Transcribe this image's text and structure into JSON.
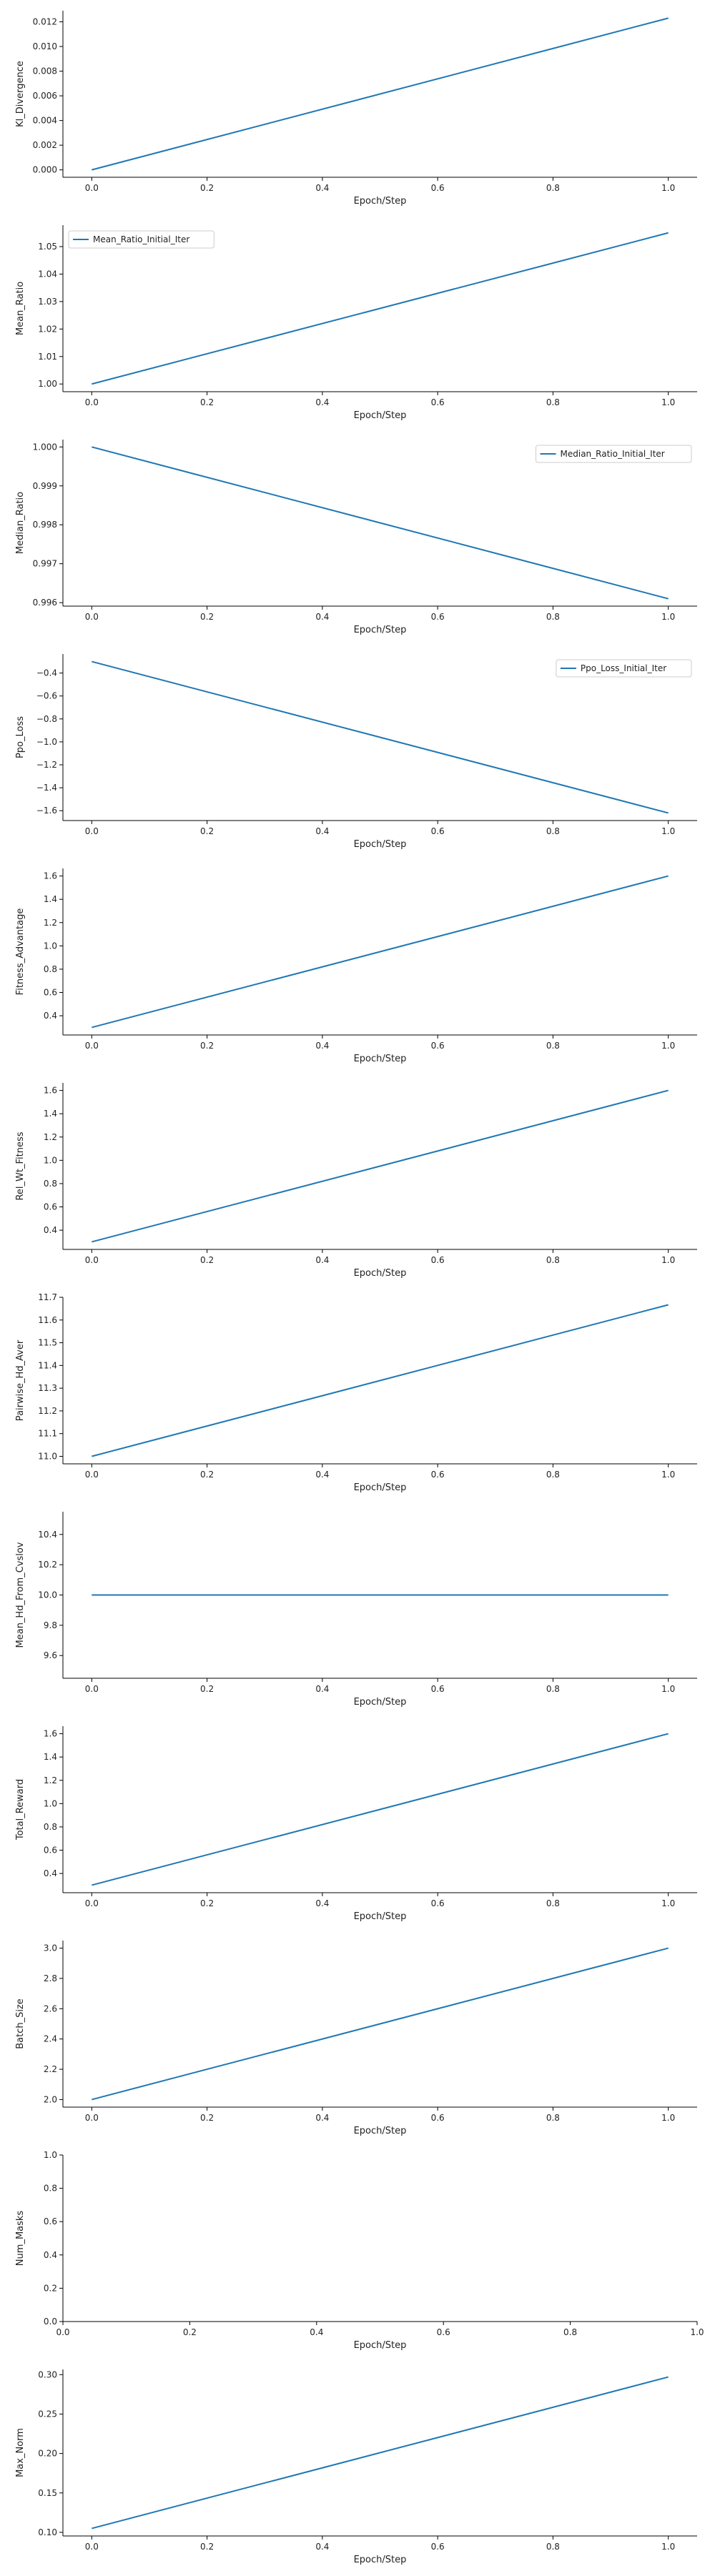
{
  "chart_data": [
    {
      "type": "line",
      "xlabel": "Epoch/Step",
      "ylabel": "Kl_Divergence",
      "x": [
        0.0,
        1.0
      ],
      "series": [
        {
          "values": [
            0.0,
            0.0123
          ]
        }
      ],
      "xlim": [
        -0.05,
        1.05
      ],
      "ylim": [
        -0.0006,
        0.0129
      ],
      "xticks": [
        "0.0",
        "0.2",
        "0.4",
        "0.6",
        "0.8",
        "1.0"
      ],
      "yticks": [
        "0.000",
        "0.002",
        "0.004",
        "0.006",
        "0.008",
        "0.010",
        "0.012"
      ],
      "ytick_values": [
        0.0,
        0.002,
        0.004,
        0.006,
        0.008,
        0.01,
        0.012
      ],
      "legend": null,
      "color": "#1f77b4"
    },
    {
      "type": "line",
      "xlabel": "Epoch/Step",
      "ylabel": "Mean_Ratio",
      "x": [
        0.0,
        1.0
      ],
      "series": [
        {
          "name": "Mean_Ratio_Initial_Iter",
          "values": [
            1.0,
            1.055
          ]
        }
      ],
      "xlim": [
        -0.05,
        1.05
      ],
      "ylim": [
        0.9972,
        1.0578
      ],
      "xticks": [
        "0.0",
        "0.2",
        "0.4",
        "0.6",
        "0.8",
        "1.0"
      ],
      "yticks": [
        "1.00",
        "1.01",
        "1.02",
        "1.03",
        "1.04",
        "1.05"
      ],
      "ytick_values": [
        1.0,
        1.01,
        1.02,
        1.03,
        1.04,
        1.05
      ],
      "legend": "upper-left",
      "color": "#1f77b4"
    },
    {
      "type": "line",
      "xlabel": "Epoch/Step",
      "ylabel": "Median_Ratio",
      "x": [
        0.0,
        1.0
      ],
      "series": [
        {
          "name": "Median_Ratio_Initial_Iter",
          "values": [
            1.0,
            0.9961
          ]
        }
      ],
      "xlim": [
        -0.05,
        1.05
      ],
      "ylim": [
        0.99591,
        1.00019
      ],
      "xticks": [
        "0.0",
        "0.2",
        "0.4",
        "0.6",
        "0.8",
        "1.0"
      ],
      "yticks": [
        "0.996",
        "0.997",
        "0.998",
        "0.999",
        "1.000"
      ],
      "ytick_values": [
        0.996,
        0.997,
        0.998,
        0.999,
        1.0
      ],
      "legend": "upper-right",
      "color": "#1f77b4"
    },
    {
      "type": "line",
      "xlabel": "Epoch/Step",
      "ylabel": "Ppo_Loss",
      "x": [
        0.0,
        1.0
      ],
      "series": [
        {
          "name": "Ppo_Loss_Initial_Iter",
          "values": [
            -0.3,
            -1.62
          ]
        }
      ],
      "xlim": [
        -0.05,
        1.05
      ],
      "ylim": [
        -1.686,
        -0.234
      ],
      "xticks": [
        "0.0",
        "0.2",
        "0.4",
        "0.6",
        "0.8",
        "1.0"
      ],
      "yticks": [
        "−0.4",
        "−0.6",
        "−0.8",
        "−1.0",
        "−1.2",
        "−1.4",
        "−1.6"
      ],
      "ytick_values": [
        -0.4,
        -0.6,
        -0.8,
        -1.0,
        -1.2,
        -1.4,
        -1.6
      ],
      "legend": "upper-right",
      "color": "#1f77b4"
    },
    {
      "type": "line",
      "xlabel": "Epoch/Step",
      "ylabel": "Fitness_Advantage",
      "x": [
        0.0,
        1.0
      ],
      "series": [
        {
          "values": [
            0.3,
            1.6
          ]
        }
      ],
      "xlim": [
        -0.05,
        1.05
      ],
      "ylim": [
        0.235,
        1.665
      ],
      "xticks": [
        "0.0",
        "0.2",
        "0.4",
        "0.6",
        "0.8",
        "1.0"
      ],
      "yticks": [
        "0.4",
        "0.6",
        "0.8",
        "1.0",
        "1.2",
        "1.4",
        "1.6"
      ],
      "ytick_values": [
        0.4,
        0.6,
        0.8,
        1.0,
        1.2,
        1.4,
        1.6
      ],
      "legend": null,
      "color": "#1f77b4"
    },
    {
      "type": "line",
      "xlabel": "Epoch/Step",
      "ylabel": "Rel_Wt_Fitness",
      "x": [
        0.0,
        1.0
      ],
      "series": [
        {
          "values": [
            0.3,
            1.6
          ]
        }
      ],
      "xlim": [
        -0.05,
        1.05
      ],
      "ylim": [
        0.235,
        1.665
      ],
      "xticks": [
        "0.0",
        "0.2",
        "0.4",
        "0.6",
        "0.8",
        "1.0"
      ],
      "yticks": [
        "0.4",
        "0.6",
        "0.8",
        "1.0",
        "1.2",
        "1.4",
        "1.6"
      ],
      "ytick_values": [
        0.4,
        0.6,
        0.8,
        1.0,
        1.2,
        1.4,
        1.6
      ],
      "legend": null,
      "color": "#1f77b4"
    },
    {
      "type": "line",
      "xlabel": "Epoch/Step",
      "ylabel": "Pairwise_Hd_Aver",
      "x": [
        0.0,
        1.0
      ],
      "series": [
        {
          "values": [
            11.0,
            11.667
          ]
        }
      ],
      "xlim": [
        -0.05,
        1.05
      ],
      "ylim": [
        10.967,
        11.7
      ],
      "xticks": [
        "0.0",
        "0.2",
        "0.4",
        "0.6",
        "0.8",
        "1.0"
      ],
      "yticks": [
        "11.0",
        "11.1",
        "11.2",
        "11.3",
        "11.4",
        "11.5",
        "11.6",
        "11.7"
      ],
      "ytick_values": [
        11.0,
        11.1,
        11.2,
        11.3,
        11.4,
        11.5,
        11.6,
        11.7
      ],
      "legend": null,
      "color": "#1f77b4"
    },
    {
      "type": "line",
      "xlabel": "Epoch/Step",
      "ylabel": "Mean_Hd_From_Cvslov",
      "x": [
        0.0,
        1.0
      ],
      "series": [
        {
          "values": [
            10.0,
            10.0
          ]
        }
      ],
      "xlim": [
        -0.05,
        1.05
      ],
      "ylim": [
        9.45,
        10.55
      ],
      "xticks": [
        "0.0",
        "0.2",
        "0.4",
        "0.6",
        "0.8",
        "1.0"
      ],
      "yticks": [
        "9.6",
        "9.8",
        "10.0",
        "10.2",
        "10.4"
      ],
      "ytick_values": [
        9.6,
        9.8,
        10.0,
        10.2,
        10.4
      ],
      "legend": null,
      "color": "#1f77b4"
    },
    {
      "type": "line",
      "xlabel": "Epoch/Step",
      "ylabel": "Total_Reward",
      "x": [
        0.0,
        1.0
      ],
      "series": [
        {
          "values": [
            0.3,
            1.6
          ]
        }
      ],
      "xlim": [
        -0.05,
        1.05
      ],
      "ylim": [
        0.235,
        1.665
      ],
      "xticks": [
        "0.0",
        "0.2",
        "0.4",
        "0.6",
        "0.8",
        "1.0"
      ],
      "yticks": [
        "0.4",
        "0.6",
        "0.8",
        "1.0",
        "1.2",
        "1.4",
        "1.6"
      ],
      "ytick_values": [
        0.4,
        0.6,
        0.8,
        1.0,
        1.2,
        1.4,
        1.6
      ],
      "legend": null,
      "color": "#1f77b4"
    },
    {
      "type": "line",
      "xlabel": "Epoch/Step",
      "ylabel": "Batch_Size",
      "x": [
        0.0,
        1.0
      ],
      "series": [
        {
          "values": [
            2.0,
            3.0
          ]
        }
      ],
      "xlim": [
        -0.05,
        1.05
      ],
      "ylim": [
        1.95,
        3.05
      ],
      "xticks": [
        "0.0",
        "0.2",
        "0.4",
        "0.6",
        "0.8",
        "1.0"
      ],
      "yticks": [
        "2.0",
        "2.2",
        "2.4",
        "2.6",
        "2.8",
        "3.0"
      ],
      "ytick_values": [
        2.0,
        2.2,
        2.4,
        2.6,
        2.8,
        3.0
      ],
      "legend": null,
      "color": "#1f77b4"
    },
    {
      "type": "line",
      "xlabel": "Epoch/Step",
      "ylabel": "Num_Masks",
      "x": [],
      "series": [],
      "xlim": [
        0.0,
        1.0
      ],
      "ylim": [
        0.0,
        1.0
      ],
      "xticks": [
        "0.0",
        "0.2",
        "0.4",
        "0.6",
        "0.8",
        "1.0"
      ],
      "yticks": [
        "0.0",
        "0.2",
        "0.4",
        "0.6",
        "0.8",
        "1.0"
      ],
      "ytick_values": [
        0.0,
        0.2,
        0.4,
        0.6,
        0.8,
        1.0
      ],
      "legend": null,
      "color": "#1f77b4"
    },
    {
      "type": "line",
      "xlabel": "Epoch/Step",
      "ylabel": "Max_Norm",
      "x": [
        0.0,
        1.0
      ],
      "series": [
        {
          "values": [
            0.105,
            0.297
          ]
        }
      ],
      "xlim": [
        -0.05,
        1.05
      ],
      "ylim": [
        0.0954,
        0.3066
      ],
      "xticks": [
        "0.0",
        "0.2",
        "0.4",
        "0.6",
        "0.8",
        "1.0"
      ],
      "yticks": [
        "0.10",
        "0.15",
        "0.20",
        "0.25",
        "0.30"
      ],
      "ytick_values": [
        0.1,
        0.15,
        0.2,
        0.25,
        0.3
      ],
      "legend": null,
      "color": "#1f77b4"
    }
  ]
}
